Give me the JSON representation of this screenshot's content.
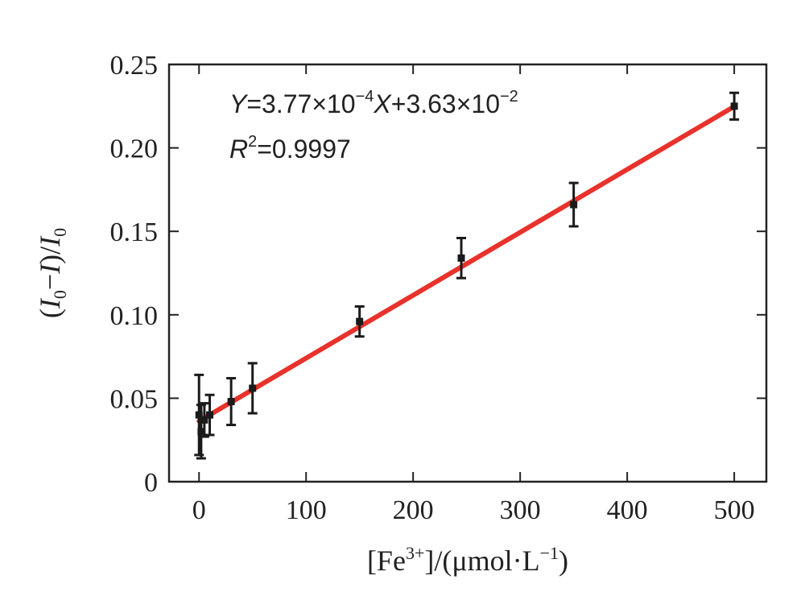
{
  "chart_data": {
    "type": "scatter",
    "x": [
      0,
      2,
      5,
      10,
      30,
      50,
      150,
      245,
      350,
      500
    ],
    "y": [
      0.04,
      0.03,
      0.037,
      0.04,
      0.048,
      0.056,
      0.096,
      0.134,
      0.166,
      0.225
    ],
    "error": [
      0.024,
      0.016,
      0.01,
      0.012,
      0.014,
      0.015,
      0.009,
      0.012,
      0.013,
      0.008
    ],
    "fit": {
      "slope": 0.000377,
      "intercept": 0.0363,
      "x_range": [
        0,
        500
      ]
    },
    "xlim": [
      -28,
      530
    ],
    "ylim": [
      0,
      0.25
    ],
    "x_ticks": [
      0,
      100,
      200,
      300,
      400,
      500
    ],
    "x_tick_labels": [
      "0",
      "100",
      "200",
      "300",
      "400",
      "500"
    ],
    "y_ticks": [
      0,
      0.05,
      0.1,
      0.15,
      0.2,
      0.25
    ],
    "y_tick_labels": [
      "0",
      "0.05",
      "0.10",
      "0.15",
      "0.20",
      "0.25"
    ],
    "xlabel": "[Fe3+]/(μmol·L−1)",
    "ylabel": "(I0−I)/I0",
    "annotations": {
      "equation": "Y=3.77×10−4X+3.63×10−2",
      "r_squared": "R2=0.9997"
    },
    "colors": {
      "fit_line": "#e8322b",
      "points": "#1a1a1a",
      "axes": "#222222"
    },
    "grid": false
  }
}
